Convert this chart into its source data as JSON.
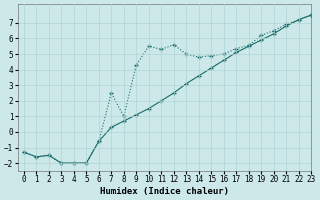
{
  "xlabel": "Humidex (Indice chaleur)",
  "background_color": "#cce8e8",
  "line_color": "#1a6b6b",
  "xlim": [
    -0.5,
    23
  ],
  "ylim": [
    -2.5,
    8.2
  ],
  "xticks": [
    0,
    1,
    2,
    3,
    4,
    5,
    6,
    7,
    8,
    9,
    10,
    11,
    12,
    13,
    14,
    15,
    16,
    17,
    18,
    19,
    20,
    21,
    22,
    23
  ],
  "yticks": [
    -2,
    -1,
    0,
    1,
    2,
    3,
    4,
    5,
    6,
    7
  ],
  "curve1_x": [
    0,
    1,
    2,
    3,
    4,
    5,
    6,
    7,
    8,
    9,
    10,
    11,
    12,
    13,
    14,
    15,
    16,
    17,
    18,
    19,
    20,
    21,
    22,
    23
  ],
  "curve1_y": [
    -1.3,
    -1.6,
    -1.5,
    -2.0,
    -2.0,
    -2.0,
    -0.6,
    0.3,
    0.7,
    1.1,
    1.5,
    2.0,
    2.5,
    3.1,
    3.6,
    4.1,
    4.6,
    5.1,
    5.5,
    5.9,
    6.3,
    6.8,
    7.2,
    7.5
  ],
  "curve2_x": [
    0,
    1,
    2,
    3,
    4,
    5,
    6,
    7,
    8,
    9,
    10,
    11,
    12,
    13,
    14,
    15,
    16,
    17,
    18,
    19,
    20,
    21,
    22,
    23
  ],
  "curve2_y": [
    -1.3,
    -1.6,
    -1.5,
    -2.0,
    -2.0,
    -2.0,
    -0.6,
    2.5,
    1.0,
    4.3,
    5.5,
    5.3,
    5.6,
    5.0,
    4.8,
    4.9,
    5.0,
    5.35,
    5.55,
    6.2,
    6.5,
    6.9,
    7.2,
    7.5
  ],
  "grid_color": "#afd4d4"
}
